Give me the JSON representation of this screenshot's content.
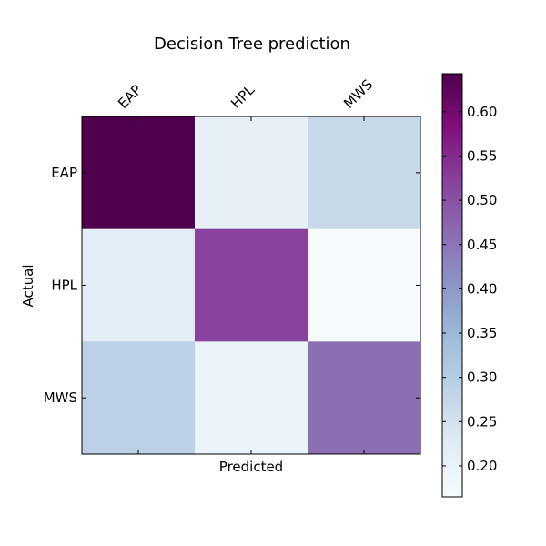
{
  "chart_data": {
    "type": "heatmap",
    "title": "Decision Tree prediction",
    "xlabel": "Predicted",
    "ylabel": "Actual",
    "x_categories": [
      "EAP",
      "HPL",
      "MWS"
    ],
    "y_categories": [
      "EAP",
      "HPL",
      "MWS"
    ],
    "values": [
      [
        0.64,
        0.21,
        0.27
      ],
      [
        0.22,
        0.52,
        0.17
      ],
      [
        0.29,
        0.2,
        0.46
      ]
    ],
    "colormap": "BuPu",
    "colorbar": {
      "vmin": 0.165,
      "vmax": 0.643,
      "ticks": [
        0.2,
        0.25,
        0.3,
        0.35,
        0.4,
        0.45,
        0.5,
        0.55,
        0.6
      ],
      "tick_labels": [
        "0.20",
        "0.25",
        "0.30",
        "0.35",
        "0.40",
        "0.45",
        "0.50",
        "0.55",
        "0.60"
      ]
    },
    "colors": [
      "#f7fcfd",
      "#e0ecf4",
      "#bfd3e6",
      "#9ebcda",
      "#8c96c6",
      "#8c6bb1",
      "#88419d",
      "#810f7c",
      "#4d004b"
    ]
  }
}
